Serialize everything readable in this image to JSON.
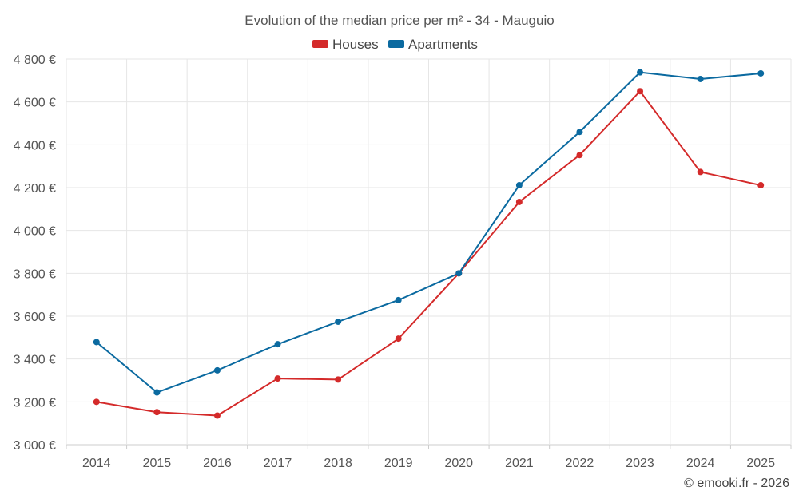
{
  "chart_data": {
    "type": "line",
    "title": "Evolution of the median price per m² - 34 - Mauguio",
    "categories": [
      "2014",
      "2015",
      "2016",
      "2017",
      "2018",
      "2019",
      "2020",
      "2021",
      "2022",
      "2023",
      "2024",
      "2025"
    ],
    "series": [
      {
        "name": "Houses",
        "color": "#d42a2a",
        "values": [
          3200,
          3152,
          3136,
          3309,
          3304,
          3495,
          3800,
          4133,
          4352,
          4650,
          4273,
          4211
        ]
      },
      {
        "name": "Apartments",
        "color": "#0b6aa0",
        "values": [
          3479,
          3244,
          3347,
          3469,
          3574,
          3675,
          3800,
          4211,
          4460,
          4738,
          4707,
          4733
        ]
      }
    ],
    "ylim": [
      3000,
      4800
    ],
    "y_ticks": [
      3000,
      3200,
      3400,
      3600,
      3800,
      4000,
      4200,
      4400,
      4600,
      4800
    ],
    "y_tick_labels": [
      "3 000 €",
      "3 200 €",
      "3 400 €",
      "3 600 €",
      "3 800 €",
      "4 000 €",
      "4 200 €",
      "4 400 €",
      "4 600 €",
      "4 800 €"
    ],
    "xlabel": "",
    "ylabel": "",
    "grid": true,
    "legend_position": "top-center",
    "credit": "© emooki.fr - 2026"
  }
}
